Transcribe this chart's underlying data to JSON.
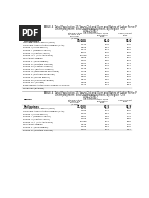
{
  "bg_color": "#ffffff",
  "pdf_box_color": "#2a2a2a",
  "pdf_text_color": "#ffffff",
  "text_color": "#111111",
  "line_color": "#999999",
  "title_lines_1": [
    "TABLE 4  Total Population 15 Years Old and Over and Rates of Labor Force P",
    "Unemployment  and Underemployment, by Region  Oct",
    "(Oct 2018)",
    "(in Percent)"
  ],
  "title_lines_2": [
    "TABLE 4  Total Population 15 Years Old and Over and Rates of Labor Force P",
    "Unemployment  and Underemployment, by Region  Oct",
    "(Oct 2019)",
    "(in Percent)"
  ],
  "col_header_1": "Total Population\n15 Years Old\nand Over",
  "col_header_2": "Labor Force\nParticipation\nRates",
  "col_header_3": "Unemployment\nRates",
  "col_unit": "(in '000s)",
  "regions1": [
    [
      "Philippines",
      "70,000",
      "61.0",
      "95.0",
      true
    ],
    [
      "National Capital Region (NCR)",
      "6,421",
      "65.6",
      "95.4",
      false
    ],
    [
      "Cordillera Administrative Region (CAR)",
      "1,012",
      "72.8",
      "97.5",
      false
    ],
    [
      "Region I (Ilocos Region)",
      "3,605",
      "61.1",
      "96.0",
      false
    ],
    [
      "Region II (Cagayan Valley)",
      "2,471",
      "65.1",
      "96.2",
      false
    ],
    [
      "Region III (Central Luzon)",
      "8,757",
      "60.0",
      "95.8",
      false
    ],
    [
      "Region IV-A  (CALABARZON)",
      "10,248",
      "60.3",
      "94.5",
      false
    ],
    [
      "MIMAROPA Region",
      "1,569",
      "67.1",
      "95.2",
      false
    ],
    [
      "Region V  (Bicol Region)",
      "4,297",
      "61.0",
      "95.3",
      false
    ],
    [
      "Region VI (Western Visayas)",
      "3,967",
      "65.4",
      "97.4",
      false
    ],
    [
      "Region VII (Central Visayas)",
      "3,678",
      "62.3",
      "96.7",
      false
    ],
    [
      "Region VIII (Eastern Visayas)",
      "2,116",
      "65.3",
      "95.4",
      false
    ],
    [
      "Region IX (Zamboanga Peninsula)",
      "1,728",
      "57.6",
      "96.1",
      false
    ],
    [
      "Region X (Northern Mindanao)",
      "3,417",
      "68.9",
      "96.5",
      false
    ],
    [
      "Region XI (Davao Region)",
      "3,637",
      "65.0",
      "95.8",
      false
    ],
    [
      "Region XII (SOCCSKSARGEN)",
      "3,547",
      "63.2",
      "95.3",
      false
    ],
    [
      "Region XIII (Caraga)",
      "1,595",
      "65.3",
      "95.8",
      false
    ],
    [
      "Bangsamoro Autonomous Region in Muslim",
      "1,372",
      "53.4",
      "93.4",
      false
    ],
    [
      "Mindanao (BARMM)",
      "",
      "",
      "",
      false
    ]
  ],
  "regions2": [
    [
      "Philippines",
      "71,000",
      "62.5",
      "94.9",
      true
    ],
    [
      "National Capital Region (NCR)",
      "6,544",
      "65.0",
      "94.0",
      false
    ],
    [
      "Cordillera Administrative Region (CAR)",
      "1,083",
      "72.1",
      "95.0",
      false
    ],
    [
      "Region I (Ilocos Region)",
      "3,731",
      "61.1",
      "97.0",
      false
    ],
    [
      "Region II (Cagayan Valley)",
      "2,567",
      "63.3",
      "97.3",
      false
    ],
    [
      "Region III (Central Luzon)",
      "9,065",
      "59.0",
      "93.8",
      false
    ],
    [
      "Region IV-A  (CALABARZON)",
      "10,258",
      "60.1",
      "93.8",
      false
    ],
    [
      "MIMAROPA Region",
      "1,819",
      "63.4",
      "97.0",
      false
    ],
    [
      "Region V  (Bicol Region)",
      "4,125",
      "61.1",
      "95.0",
      false
    ],
    [
      "Region VI (Western Visayas)",
      "3,467",
      "62.1",
      "94.7",
      false
    ]
  ]
}
